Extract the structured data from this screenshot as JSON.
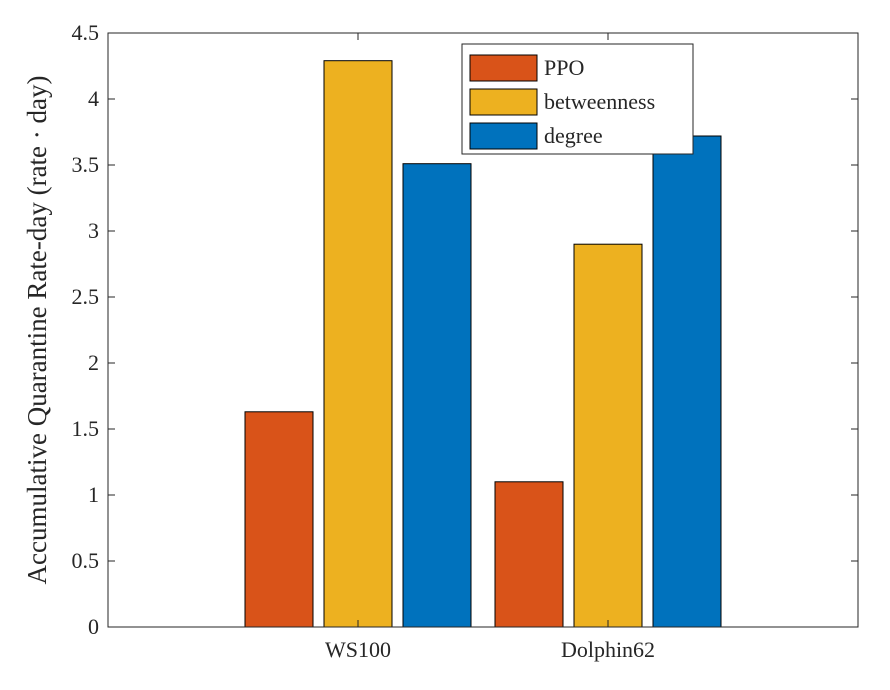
{
  "chart_data": {
    "type": "bar",
    "title": "",
    "xlabel": "",
    "ylabel": "Accumulative Quarantine Rate-day (rate · day)",
    "categories": [
      "WS100",
      "Dolphin62"
    ],
    "series": [
      {
        "name": "PPO",
        "values": [
          1.63,
          1.1
        ],
        "color": "#D95319"
      },
      {
        "name": "betweenness",
        "values": [
          4.29,
          2.9
        ],
        "color": "#EDB120"
      },
      {
        "name": "degree",
        "values": [
          3.51,
          3.72
        ],
        "color": "#0072BD"
      }
    ],
    "ylim": [
      0,
      4.5
    ],
    "yticks": [
      0,
      0.5,
      1,
      1.5,
      2,
      2.5,
      3,
      3.5,
      4,
      4.5
    ],
    "ytick_labels": [
      "0",
      "0.5",
      "1",
      "1.5",
      "2",
      "2.5",
      "3",
      "3.5",
      "4",
      "4.5"
    ],
    "grid": false,
    "legend_position": "top-right",
    "box": true
  }
}
